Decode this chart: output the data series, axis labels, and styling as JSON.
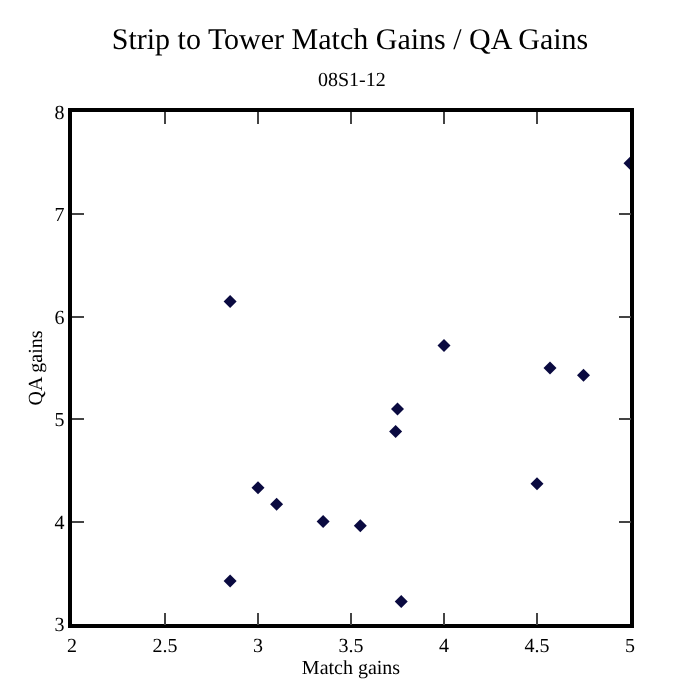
{
  "chart_data": {
    "type": "scatter",
    "title": "Strip to Tower Match Gains / QA Gains",
    "subtitle": "08S1-12",
    "xlabel": "Match gains",
    "ylabel": "QA gains",
    "x": [
      2.85,
      2.85,
      3.0,
      3.1,
      3.35,
      3.55,
      3.75,
      3.74,
      3.77,
      4.0,
      4.5,
      4.57,
      4.75,
      5.0
    ],
    "values": [
      6.15,
      3.42,
      4.33,
      4.17,
      4.0,
      3.96,
      5.1,
      4.88,
      3.22,
      5.72,
      4.37,
      5.5,
      5.43,
      7.5
    ],
    "color": "#0a0a40",
    "marker": "diamond",
    "xlim": [
      2,
      5
    ],
    "xticks": [
      2,
      2.5,
      3,
      3.5,
      4,
      4.5,
      5
    ],
    "ylim": [
      3,
      8
    ],
    "yticks": [
      3,
      4,
      5,
      6,
      7,
      8
    ]
  }
}
